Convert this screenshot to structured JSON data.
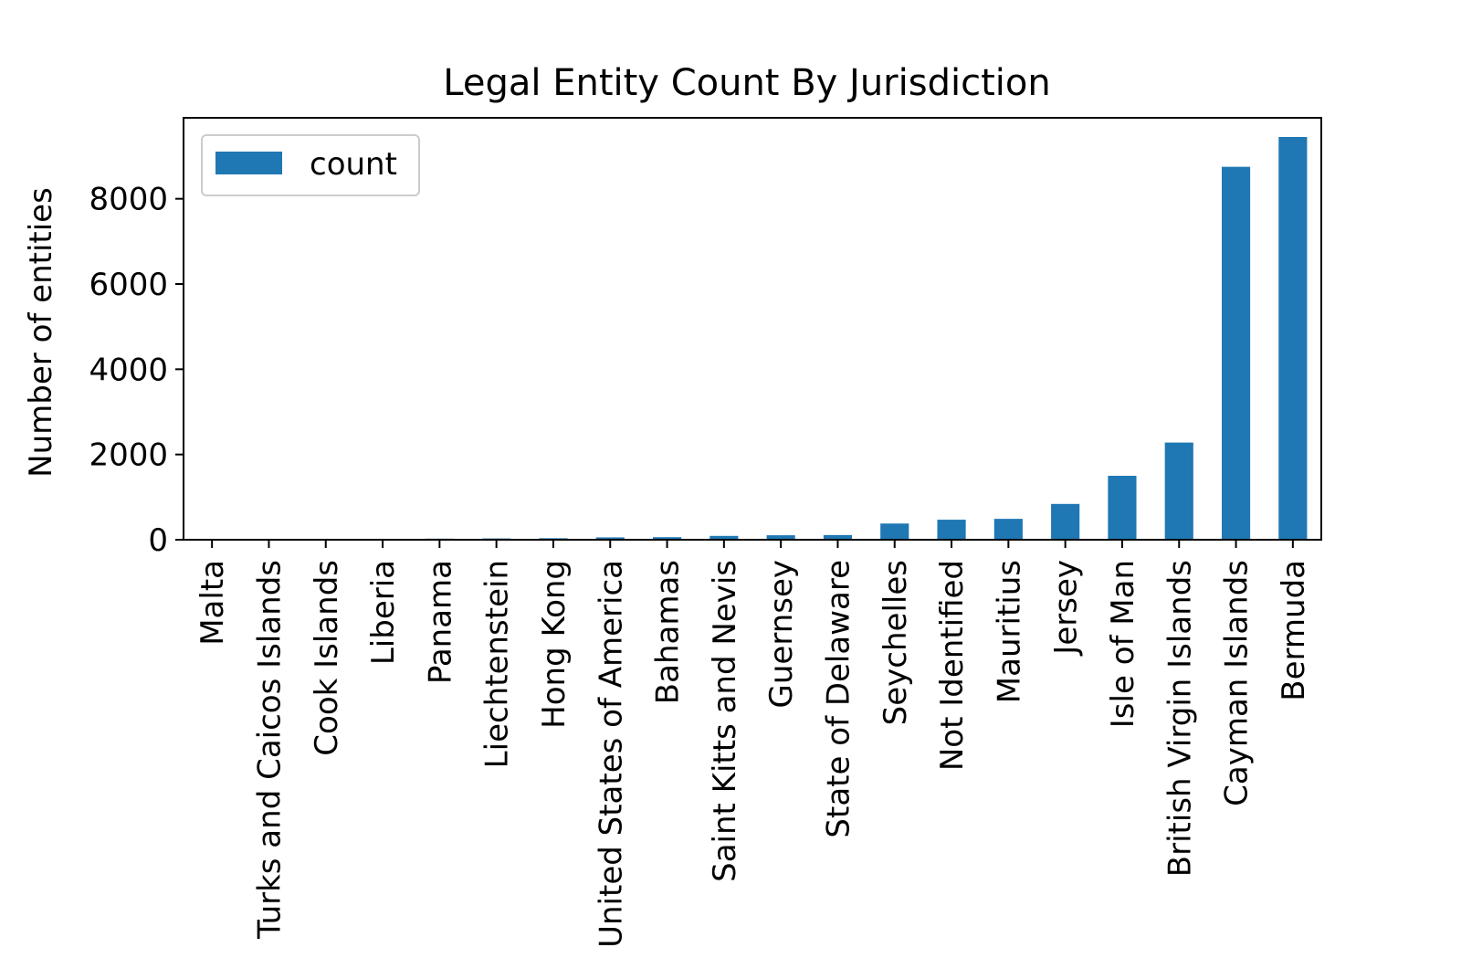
{
  "chart_data": {
    "type": "bar",
    "title": "Legal Entity Count By Jurisdiction",
    "xlabel": "",
    "ylabel": "Number of entities",
    "ylim": [
      0,
      9900
    ],
    "yticks": [
      0,
      2000,
      4000,
      6000,
      8000
    ],
    "categories": [
      "Malta",
      "Turks and Caicos Islands",
      "Cook Islands",
      "Liberia",
      "Panama",
      "Liechtenstein",
      "Hong Kong",
      "United States of America",
      "Bahamas",
      "Saint Kitts and Nevis",
      "Guernsey",
      "State of Delaware",
      "Seychelles",
      "Not Identified",
      "Mauritius",
      "Jersey",
      "Isle of Man",
      "British Virgin Islands",
      "Cayman Islands",
      "Bermuda"
    ],
    "series": [
      {
        "name": "count",
        "color": "#1f77b4",
        "values": [
          3,
          5,
          8,
          20,
          25,
          30,
          35,
          55,
          60,
          90,
          105,
          110,
          380,
          470,
          490,
          840,
          1500,
          2280,
          8750,
          9450
        ]
      }
    ],
    "legend_position": "top-left",
    "grid": false
  }
}
